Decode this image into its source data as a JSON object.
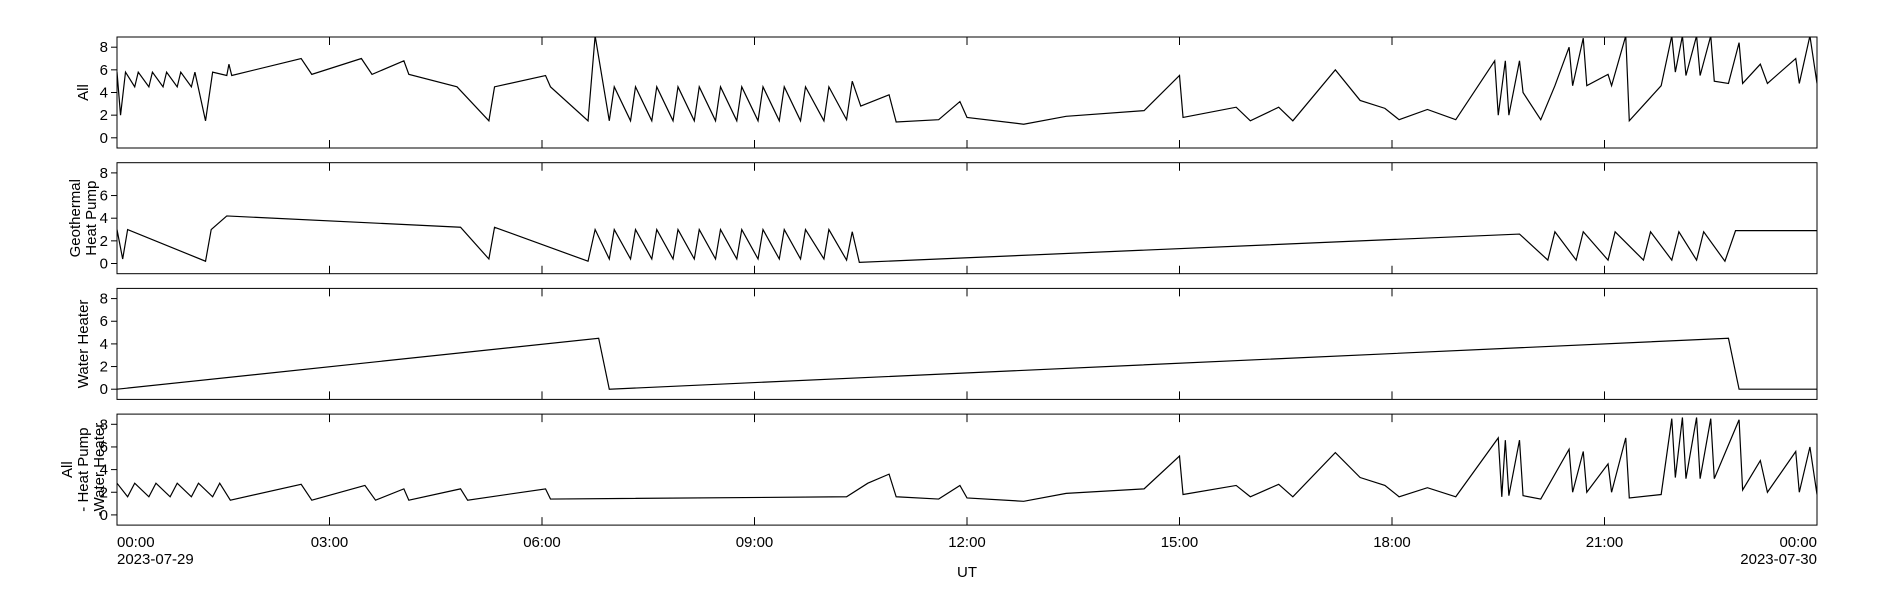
{
  "chart_data": [
    {
      "type": "line",
      "ylabel": [
        "All"
      ],
      "color": "#000000",
      "x": [
        0,
        0.05,
        0.12,
        0.25,
        0.3,
        0.45,
        0.5,
        0.65,
        0.7,
        0.85,
        0.9,
        1.05,
        1.1,
        1.25,
        1.35,
        1.55,
        1.58,
        1.62,
        2.6,
        2.75,
        3.45,
        3.6,
        4.05,
        4.12,
        4.8,
        5.25,
        5.33,
        6.05,
        6.12,
        6.65,
        6.75,
        6.95,
        7.02,
        7.25,
        7.32,
        7.55,
        7.62,
        7.85,
        7.92,
        8.15,
        8.22,
        8.45,
        8.52,
        8.75,
        8.82,
        9.05,
        9.12,
        9.35,
        9.42,
        9.65,
        9.72,
        9.98,
        10.05,
        10.3,
        10.38,
        10.5,
        10.9,
        11.0,
        11.6,
        11.9,
        12.0,
        12.8,
        13.4,
        14.5,
        15.0,
        15.05,
        15.8,
        16.0,
        16.4,
        16.6,
        17.2,
        17.55,
        17.9,
        18.1,
        18.5,
        18.9,
        19.45,
        19.5,
        19.6,
        19.65,
        19.8,
        19.85,
        20.1,
        20.3,
        20.5,
        20.55,
        20.7,
        20.75,
        21.05,
        21.1,
        21.3,
        21.35,
        21.8,
        21.95,
        22.0,
        22.1,
        22.15,
        22.3,
        22.35,
        22.5,
        22.55,
        22.75,
        22.9,
        22.95,
        23.2,
        23.3,
        23.7,
        23.75,
        23.9,
        24
      ],
      "values": [
        5.8,
        2,
        5.8,
        4.5,
        5.8,
        4.5,
        5.8,
        4.5,
        5.8,
        4.5,
        5.8,
        4.5,
        5.8,
        1.5,
        5.8,
        5.5,
        6.5,
        5.5,
        7,
        5.6,
        7,
        5.6,
        6.8,
        5.6,
        4.5,
        1.5,
        4.5,
        5.5,
        4.5,
        1.5,
        9,
        1.5,
        4.5,
        1.5,
        4.5,
        1.5,
        4.5,
        1.5,
        4.5,
        1.5,
        4.5,
        1.5,
        4.5,
        1.5,
        4.5,
        1.5,
        4.5,
        1.5,
        4.5,
        1.5,
        4.5,
        1.5,
        4.5,
        1.6,
        5,
        2.8,
        3.8,
        1.4,
        1.6,
        3.2,
        1.8,
        1.2,
        1.9,
        2.4,
        5.5,
        1.8,
        2.7,
        1.5,
        2.7,
        1.5,
        6,
        3.3,
        2.6,
        1.6,
        2.5,
        1.6,
        6.8,
        2,
        6.8,
        2,
        6.8,
        4,
        1.6,
        4.6,
        8,
        4.6,
        8.8,
        4.6,
        5.6,
        4.6,
        9,
        1.5,
        4.6,
        9,
        5.8,
        9,
        5.5,
        9,
        5.5,
        9,
        5,
        4.8,
        8.4,
        4.8,
        6.5,
        4.8,
        7,
        4.8,
        9,
        4.8
      ],
      "xlim": [
        0,
        24
      ],
      "xticks": [
        0,
        3,
        6,
        9,
        12,
        15,
        18,
        21,
        24
      ],
      "ylim": [
        -0.9,
        8.9
      ],
      "yticks": [
        0,
        2,
        4,
        6,
        8
      ]
    },
    {
      "type": "line",
      "ylabel": [
        "Geothermal",
        "Heat Pump"
      ],
      "color": "#000000",
      "x": [
        0,
        0.08,
        0.15,
        1.25,
        1.33,
        1.55,
        4.85,
        5.25,
        5.33,
        6.65,
        6.75,
        6.95,
        7.02,
        7.25,
        7.32,
        7.55,
        7.62,
        7.85,
        7.92,
        8.15,
        8.22,
        8.45,
        8.52,
        8.75,
        8.82,
        9.05,
        9.12,
        9.35,
        9.42,
        9.65,
        9.72,
        9.98,
        10.05,
        10.3,
        10.38,
        10.48,
        19.8,
        20.2,
        20.3,
        20.6,
        20.7,
        21.05,
        21.15,
        21.55,
        21.65,
        21.95,
        22.05,
        22.3,
        22.4,
        22.7,
        22.85,
        24
      ],
      "values": [
        3.0,
        0.4,
        3.0,
        0.2,
        3.0,
        4.2,
        3.2,
        0.4,
        3.2,
        0.2,
        3.0,
        0.4,
        3.0,
        0.4,
        3.0,
        0.4,
        3.0,
        0.4,
        3.0,
        0.4,
        3.0,
        0.4,
        3.0,
        0.4,
        3.0,
        0.4,
        3.0,
        0.4,
        3.0,
        0.4,
        3.0,
        0.4,
        3.0,
        0.3,
        2.8,
        0.1,
        2.6,
        0.3,
        2.8,
        0.3,
        2.8,
        0.3,
        2.8,
        0.3,
        2.8,
        0.3,
        2.8,
        0.3,
        2.8,
        0.2,
        2.9,
        2.9
      ],
      "xlim": [
        0,
        24
      ],
      "xticks": [
        0,
        3,
        6,
        9,
        12,
        15,
        18,
        21,
        24
      ],
      "ylim": [
        -0.9,
        8.9
      ],
      "yticks": [
        0,
        2,
        4,
        6,
        8
      ]
    },
    {
      "type": "line",
      "ylabel": [
        "Water Heater"
      ],
      "color": "#000000",
      "x": [
        0,
        6.8,
        6.95,
        22.75,
        22.9,
        24
      ],
      "values": [
        0,
        4.5,
        0,
        4.5,
        0,
        0
      ],
      "xlim": [
        0,
        24
      ],
      "xticks": [
        0,
        3,
        6,
        9,
        12,
        15,
        18,
        21,
        24
      ],
      "ylim": [
        -0.9,
        8.9
      ],
      "yticks": [
        0,
        2,
        4,
        6,
        8
      ]
    },
    {
      "type": "line",
      "ylabel": [
        "All",
        "- Heat Pump",
        "-Water Heater"
      ],
      "color": "#000000",
      "x": [
        0,
        0.15,
        0.25,
        0.45,
        0.55,
        0.75,
        0.85,
        1.05,
        1.15,
        1.35,
        1.45,
        1.6,
        2.6,
        2.75,
        3.5,
        3.65,
        4.05,
        4.12,
        4.85,
        4.95,
        6.05,
        6.12,
        10.3,
        10.6,
        10.9,
        11.0,
        11.6,
        11.9,
        12.0,
        12.8,
        13.4,
        14.5,
        15.0,
        15.05,
        15.8,
        16.0,
        16.4,
        16.6,
        17.2,
        17.55,
        17.9,
        18.1,
        18.5,
        18.9,
        19.5,
        19.55,
        19.6,
        19.65,
        19.8,
        19.85,
        20.1,
        20.5,
        20.55,
        20.7,
        20.75,
        21.05,
        21.1,
        21.3,
        21.35,
        21.8,
        21.95,
        22.0,
        22.1,
        22.15,
        22.3,
        22.35,
        22.5,
        22.55,
        22.9,
        22.95,
        23.2,
        23.3,
        23.7,
        23.75,
        23.9,
        24
      ],
      "values": [
        2.8,
        1.6,
        2.8,
        1.6,
        2.8,
        1.6,
        2.8,
        1.6,
        2.8,
        1.6,
        2.8,
        1.3,
        2.7,
        1.3,
        2.6,
        1.3,
        2.3,
        1.3,
        2.3,
        1.3,
        2.3,
        1.4,
        1.6,
        2.8,
        3.6,
        1.6,
        1.4,
        2.6,
        1.5,
        1.2,
        1.9,
        2.3,
        5.2,
        1.8,
        2.6,
        1.6,
        2.7,
        1.6,
        5.5,
        3.3,
        2.6,
        1.6,
        2.4,
        1.6,
        6.8,
        1.6,
        6.6,
        1.7,
        6.6,
        1.7,
        1.4,
        5.8,
        2,
        5.6,
        2,
        4.5,
        2,
        6.8,
        1.5,
        1.8,
        8.5,
        3.3,
        8.6,
        3.2,
        8.6,
        3.2,
        8.5,
        3.2,
        8.4,
        2.2,
        4.8,
        2,
        5.6,
        2,
        6,
        1.8
      ],
      "xlim": [
        0,
        24
      ],
      "xticks": [
        {
          "value": 0,
          "label": "00:00"
        },
        {
          "value": 3,
          "label": "03:00"
        },
        {
          "value": 6,
          "label": "06:00"
        },
        {
          "value": 9,
          "label": "09:00"
        },
        {
          "value": 12,
          "label": "12:00"
        },
        {
          "value": 15,
          "label": "15:00"
        },
        {
          "value": 18,
          "label": "18:00"
        },
        {
          "value": 21,
          "label": "21:00"
        },
        {
          "value": 24,
          "label": "00:00"
        }
      ],
      "x_date_labels": [
        {
          "value": 0,
          "label": "2023-07-29"
        },
        {
          "value": 24,
          "label": "2023-07-30"
        }
      ],
      "xlabel": "UT",
      "ylim": [
        -0.9,
        8.9
      ],
      "yticks": [
        0,
        2,
        4,
        6,
        8
      ]
    }
  ]
}
